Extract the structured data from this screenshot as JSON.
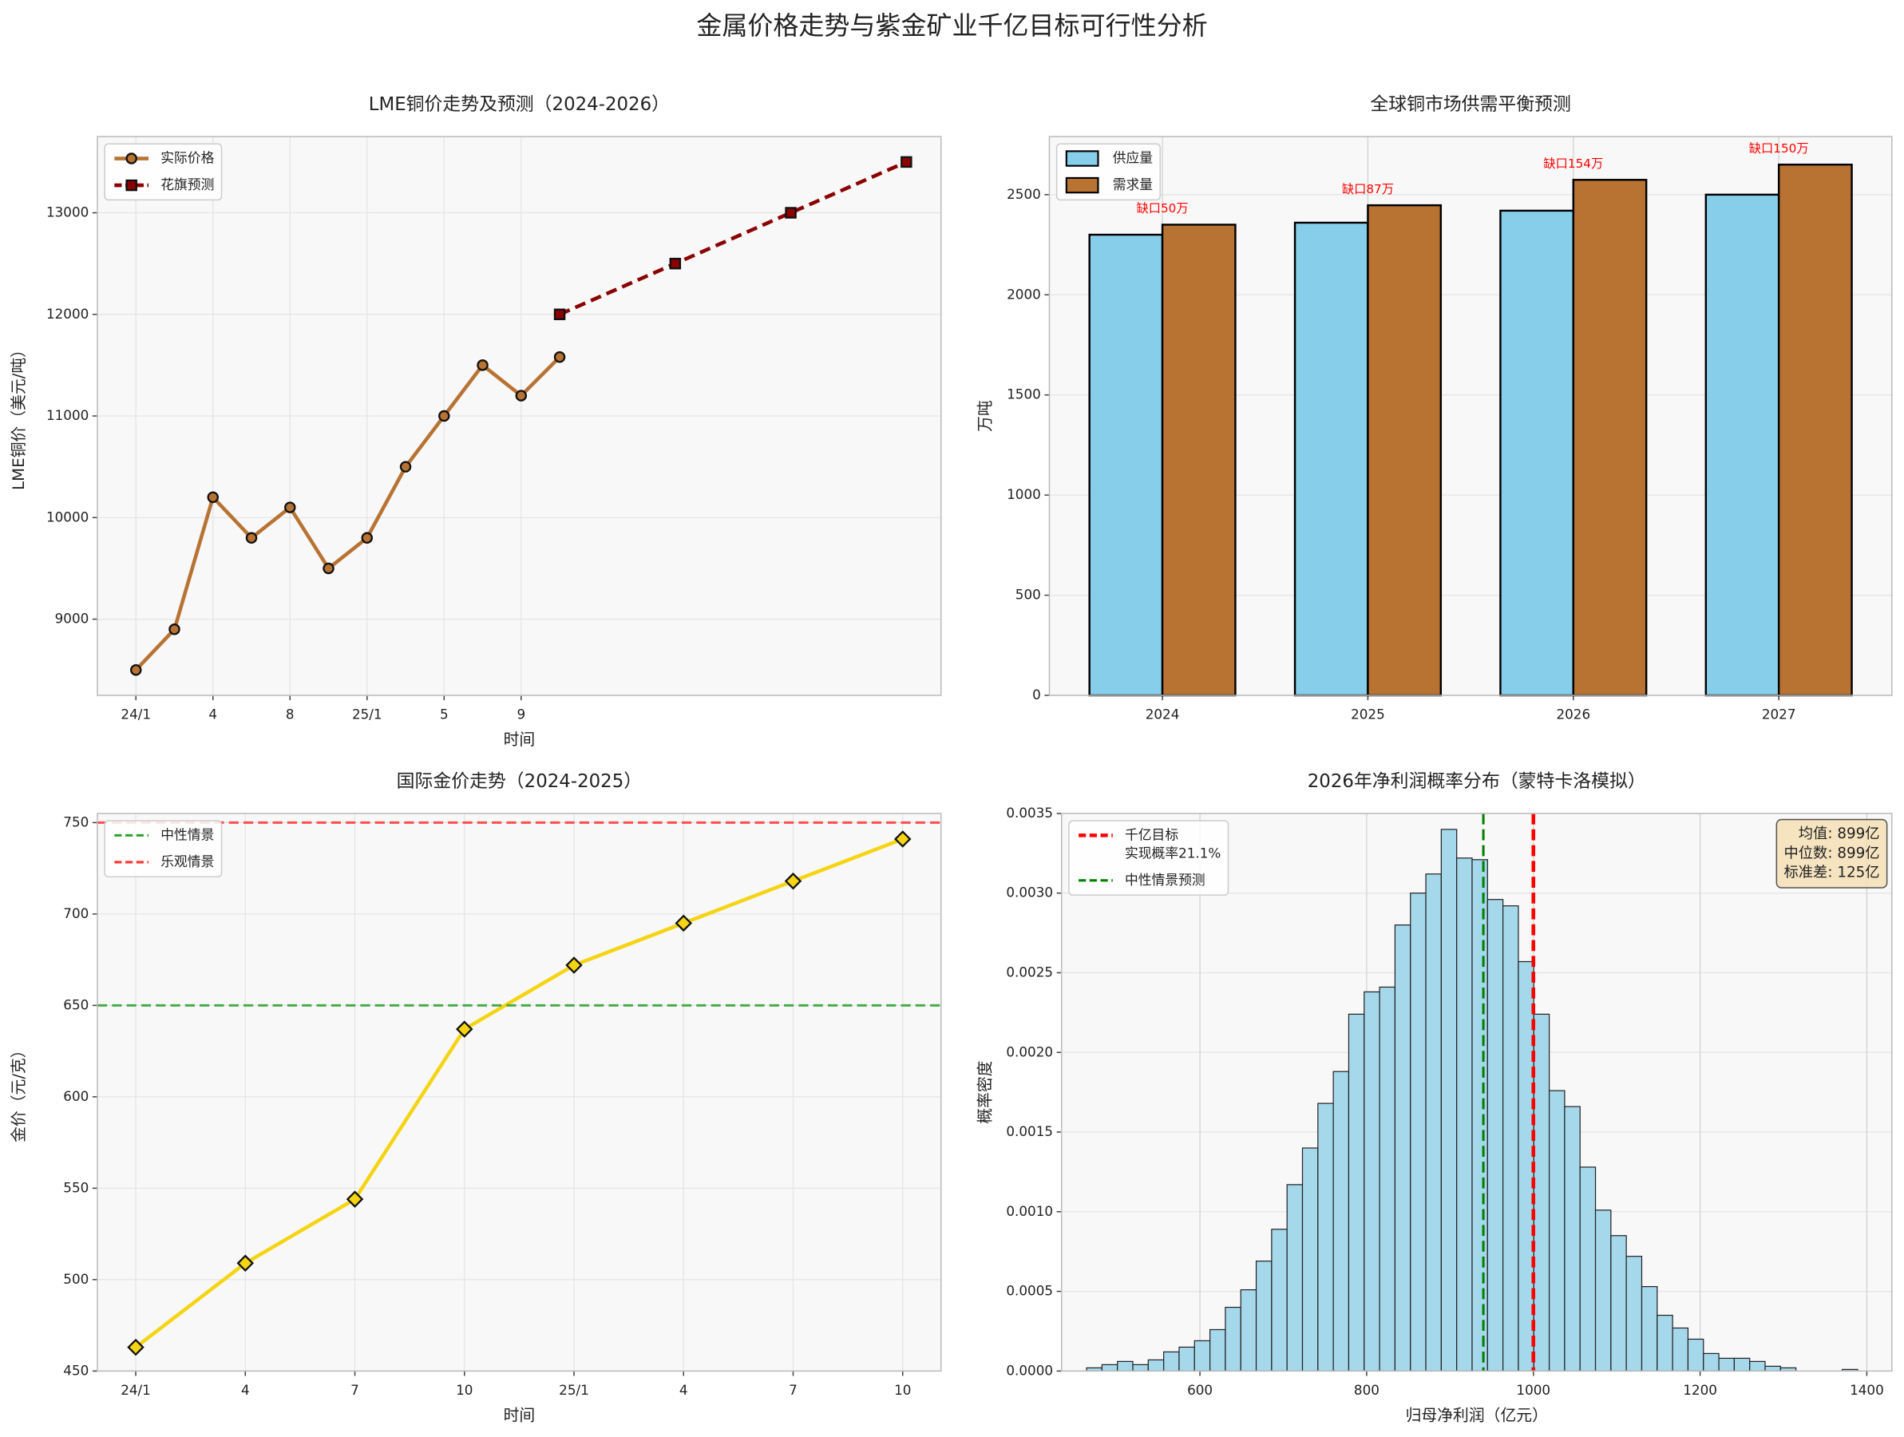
{
  "title": "金属价格走势与紫金矿业千亿目标可行性分析",
  "chart_data": [
    {
      "type": "line",
      "title": "LME铜价走势及预测（2024-2026）",
      "xlabel": "时间",
      "ylabel": "LME铜价（美元/吨）",
      "series": [
        {
          "name": "实际价格",
          "color": "#b87333",
          "marker": "circle",
          "linestyle": "solid",
          "x": [
            0,
            2,
            4,
            6,
            8,
            10,
            12,
            14,
            16,
            18,
            20,
            22
          ],
          "values": [
            8500,
            8900,
            10200,
            9800,
            10100,
            9500,
            9800,
            10500,
            11000,
            11500,
            11200,
            11580
          ]
        },
        {
          "name": "花旗预测",
          "color": "#8b0000",
          "marker": "square",
          "linestyle": "dashed",
          "x": [
            22,
            28,
            34,
            40
          ],
          "values": [
            12000,
            12500,
            13000,
            13500
          ]
        }
      ],
      "xlim": [
        -2,
        41.8
      ],
      "xticks": [
        {
          "value": 0,
          "label": "24/1"
        },
        4,
        8,
        {
          "value": 12,
          "label": "25/1"
        },
        {
          "value": 16,
          "label": "5"
        },
        {
          "value": 20,
          "label": "9"
        }
      ],
      "ylim": [
        8250,
        13750
      ],
      "yticks": [
        9000,
        10000,
        11000,
        12000,
        13000
      ],
      "grid": true,
      "legend": "upper left"
    },
    {
      "type": "bar",
      "title": "全球铜市场供需平衡预测",
      "ylabel": "万吨",
      "categories": [
        "2024",
        "2025",
        "2026",
        "2027"
      ],
      "series": [
        {
          "name": "供应量",
          "color": "#87ceeb",
          "values": [
            2300,
            2360,
            2420,
            2500
          ]
        },
        {
          "name": "需求量",
          "color": "#b87333",
          "values": [
            2350,
            2447,
            2574,
            2650
          ]
        }
      ],
      "annotations": [
        "缺口50万",
        "缺口87万",
        "缺口154万",
        "缺口150万"
      ],
      "annotation_color": "#ff0000",
      "ylim": [
        0,
        2790
      ],
      "yticks": [
        0,
        500,
        1000,
        1500,
        2000,
        2500
      ],
      "grid": true,
      "legend": "upper left"
    },
    {
      "type": "line",
      "title": "国际金价走势（2024-2025）",
      "xlabel": "时间",
      "ylabel": "金价（元/克）",
      "categories": [
        "24/1",
        "4",
        "7",
        "10",
        "25/1",
        "4",
        "7",
        "10"
      ],
      "series": [
        {
          "color": "#f5d414",
          "marker": "diamond",
          "linestyle": "solid",
          "values": [
            463,
            509,
            544,
            637,
            672,
            695,
            718,
            741
          ]
        }
      ],
      "hlines": [
        {
          "name": "中性情景",
          "value": 650,
          "color": "#2ca02c",
          "linewidth": 2
        },
        {
          "name": "乐观情景",
          "value": 750,
          "color": "#ff3333",
          "linewidth": 2
        }
      ],
      "ylim": [
        450,
        755
      ],
      "yticks": [
        450,
        500,
        550,
        600,
        650,
        700,
        750
      ],
      "grid": true,
      "legend": "upper left"
    },
    {
      "type": "histogram",
      "title": "2026年净利润概率分布（蒙特卡洛模拟）",
      "xlabel": "归母净利润（亿元）",
      "ylabel": "概率密度",
      "color": "#a6d8ec",
      "bins": [
        464,
        482.5,
        501,
        519.5,
        538,
        556.5,
        575,
        593.5,
        612,
        630.5,
        649,
        667.5,
        686,
        704.5,
        723,
        741.5,
        760,
        778.5,
        797,
        815.5,
        834,
        852.5,
        871,
        889.5,
        908,
        926.5,
        945,
        963.5,
        982,
        1000.5,
        1019,
        1037.5,
        1056,
        1074.5,
        1093,
        1111.5,
        1130,
        1148.5,
        1167,
        1185.5,
        1204,
        1222.5,
        1241,
        1259.5,
        1278,
        1296.5,
        1315,
        1333.5,
        1352,
        1370.5,
        1389
      ],
      "values": [
        2e-05,
        4e-05,
        6e-05,
        4e-05,
        7e-05,
        0.00012,
        0.00015,
        0.00019,
        0.00026,
        0.0004,
        0.00051,
        0.00069,
        0.00089,
        0.00117,
        0.0014,
        0.00168,
        0.00188,
        0.00224,
        0.00238,
        0.00241,
        0.0028,
        0.003,
        0.00312,
        0.0034,
        0.00322,
        0.00321,
        0.00296,
        0.00292,
        0.00257,
        0.00224,
        0.00176,
        0.00166,
        0.00128,
        0.00101,
        0.00085,
        0.00072,
        0.00053,
        0.00035,
        0.00027,
        0.0002,
        0.00011,
        8e-05,
        8e-05,
        6e-05,
        3e-05,
        2e-05,
        0,
        0,
        0,
        1e-05
      ],
      "vlines": [
        {
          "name": [
            "千亿目标",
            "实现概率21.1%"
          ],
          "value": 1000,
          "color": "#ff0000",
          "linewidth": 3
        },
        {
          "name": [
            "中性情景预测"
          ],
          "value": 940,
          "color": "#008000",
          "linewidth": 2
        }
      ],
      "stats_box": [
        "均值: 899亿",
        "中位数: 899亿",
        "标准差: 125亿"
      ],
      "xlim": [
        434,
        1430
      ],
      "xticks": [
        600,
        800,
        1000,
        1200,
        1400
      ],
      "ylim": [
        0,
        0.0035
      ],
      "yticks": [
        {
          "value": 0,
          "label": "0.0000"
        },
        0.0005,
        {
          "value": 0.001,
          "label": "0.0010"
        },
        0.0015,
        {
          "value": 0.002,
          "label": "0.0020"
        },
        0.0025,
        {
          "value": 0.003,
          "label": "0.0030"
        },
        0.0035
      ],
      "grid": true,
      "legend": "upper left"
    }
  ]
}
